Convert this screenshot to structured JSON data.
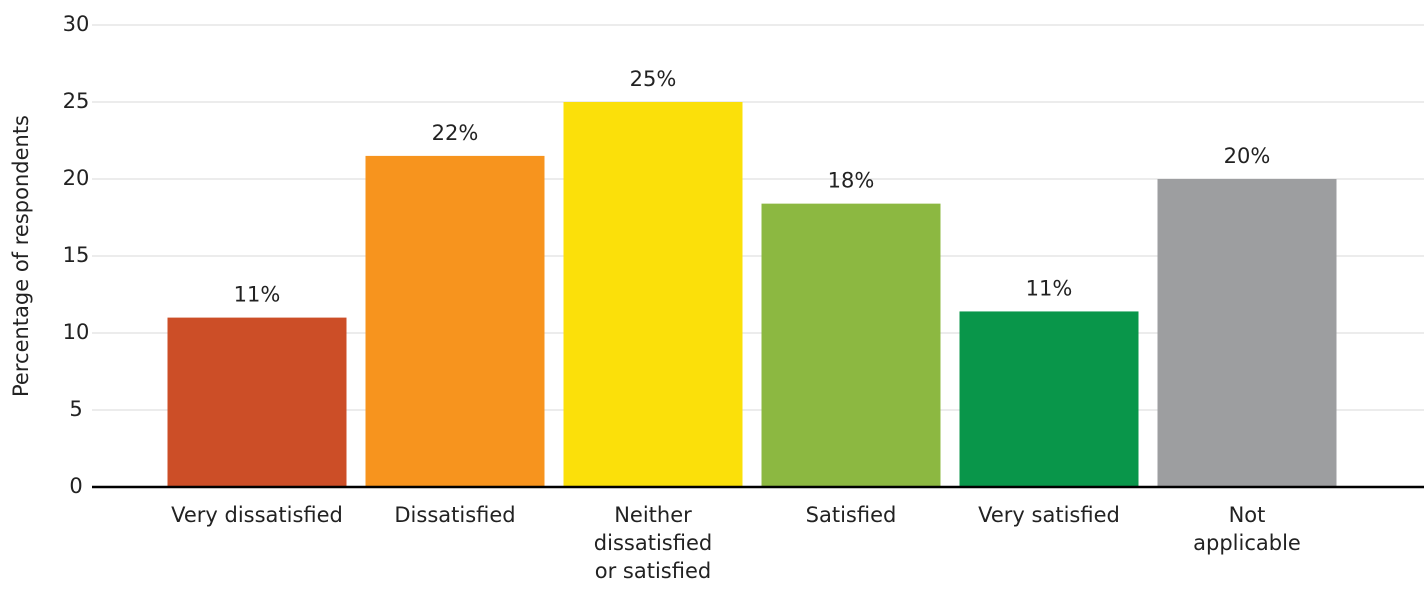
{
  "chart_data": {
    "type": "bar",
    "y_label": "Percentage of respondents",
    "categories": [
      "Very dissatisfied",
      "Dissatisfied",
      "Neither\ndissatisfied\nor satisfied",
      "Satisfied",
      "Very satisfied",
      "Not\napplicable"
    ],
    "values": [
      11,
      21.5,
      25,
      18.4,
      11.4,
      20
    ],
    "value_labels": [
      "11%",
      "22%",
      "25%",
      "18%",
      "11%",
      "20%"
    ],
    "colors": [
      "#cc4e27",
      "#f7941e",
      "#fbe00a",
      "#8cb841",
      "#09964a",
      "#9d9ea0"
    ],
    "ylim": [
      0,
      30
    ],
    "yticks": [
      0,
      5,
      10,
      15,
      20,
      25,
      30
    ],
    "grid": true
  }
}
